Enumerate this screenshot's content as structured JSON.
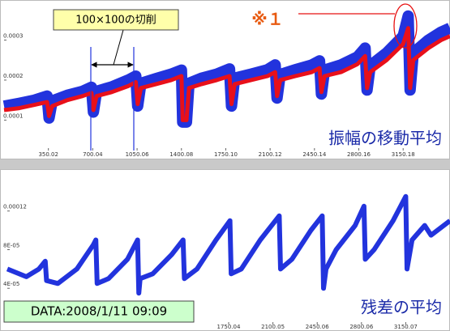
{
  "chart_data": [
    {
      "type": "line",
      "title": "振幅の移動平均",
      "annotations": [
        "100×100の切削",
        "※１"
      ],
      "x": [
        0,
        120,
        240,
        340,
        355,
        380,
        500,
        620,
        690,
        705,
        730,
        850,
        980,
        1040,
        1055,
        1080,
        1200,
        1320,
        1400,
        1410,
        1440,
        1460,
        1560,
        1680,
        1780,
        1795,
        1820,
        1950,
        2080,
        2140,
        2155,
        2180,
        2300,
        2430,
        2490,
        2505,
        2530,
        2660,
        2790,
        2850,
        2865,
        2890,
        3020,
        3150,
        3190,
        3205,
        3230,
        3350,
        3450,
        3520
      ],
      "series": [
        {
          "color": "#2233dd",
          "values": [
            0.000135,
            0.000142,
            0.00015,
            0.00016,
            0.000105,
            0.000148,
            0.000162,
            0.000172,
            0.000182,
            0.00012,
            0.000172,
            0.000183,
            0.0002,
            0.00021,
            0.000135,
            0.000192,
            0.000204,
            0.000215,
            0.000225,
            9.5e-05,
            9.5e-05,
            0.000192,
            0.000205,
            0.000215,
            0.000228,
            0.000135,
            0.000205,
            0.000215,
            0.000226,
            0.000238,
            0.000155,
            0.000214,
            0.000226,
            0.000238,
            0.000248,
            0.000165,
            0.000225,
            0.000238,
            0.000258,
            0.00028,
            0.000175,
            0.000236,
            0.000268,
            0.00031,
            0.00036,
            0.000175,
            0.000268,
            0.0003,
            0.00032,
            0.00033
          ]
        },
        {
          "color": "#e8101a",
          "values": [
            0.000125,
            0.00013,
            0.000138,
            0.000145,
            0.00011,
            0.000135,
            0.00015,
            0.00016,
            0.000168,
            0.000125,
            0.00016,
            0.00017,
            0.000185,
            0.000195,
            0.00014,
            0.00018,
            0.00019,
            0.0002,
            0.00021,
            0.0001,
            0.0001,
            0.00018,
            0.00019,
            0.0002,
            0.00021,
            0.00014,
            0.00019,
            0.0002,
            0.00021,
            0.00022,
            0.00016,
            0.0002,
            0.00021,
            0.00022,
            0.00023,
            0.00017,
            0.00021,
            0.00022,
            0.00024,
            0.00026,
            0.00018,
            0.00022,
            0.00025,
            0.00029,
            0.00033,
            0.00018,
            0.00025,
            0.00028,
            0.0003,
            0.00031
          ]
        }
      ],
      "xlim": [
        0,
        3520
      ],
      "xticks": [
        350.02,
        700.04,
        1050.06,
        1400.08,
        {
          "value": 1750.1,
          "label": "1750.10"
        },
        2100.12,
        2450.14,
        2800.16,
        3150.18
      ],
      "ylim": [
        3e-05,
        0.00039
      ],
      "yticks": [
        0.0001,
        0.0002,
        0.0003
      ]
    },
    {
      "type": "line",
      "title": "残差の平均",
      "annotations": [
        "DATA:2008/1/11 09:09"
      ],
      "x": [
        0,
        150,
        250,
        300,
        310,
        400,
        550,
        680,
        700,
        710,
        800,
        950,
        1030,
        1040,
        1050,
        1150,
        1300,
        1390,
        1400,
        1500,
        1650,
        1760,
        1770,
        1850,
        2000,
        2150,
        2160,
        2250,
        2400,
        2490,
        2500,
        2520,
        2600,
        2750,
        2820,
        2830,
        2900,
        3050,
        3150,
        3160,
        3200,
        3300,
        3350,
        3500
      ],
      "series": [
        {
          "color": "#2233dd",
          "values": [
            6e-05,
            5.2e-05,
            6e-05,
            6.8e-05,
            4.8e-05,
            4.5e-05,
            6e-05,
            8.5e-05,
            9e-05,
            4.5e-05,
            5e-05,
            7e-05,
            9e-05,
            3.5e-05,
            5e-05,
            5.5e-05,
            7.5e-05,
            9e-05,
            5e-05,
            6e-05,
            9e-05,
            0.00011,
            5.5e-05,
            6e-05,
            9e-05,
            0.000115,
            6e-05,
            7e-05,
            0.0001,
            0.000115,
            4e-05,
            6e-05,
            8e-05,
            0.000105,
            0.000125,
            7e-05,
            8e-05,
            0.00011,
            0.000135,
            6e-05,
            9e-05,
            0.000105,
            9.5e-05,
            0.00011
          ]
        }
      ],
      "xlim": [
        0,
        3500
      ],
      "xticks": [
        1750.04,
        2100.05,
        2450.06,
        2800.06,
        3150.07
      ],
      "ylim": [
        5e-06,
        0.00016
      ],
      "yticks": [
        {
          "value": 4e-05,
          "label": "4E-05"
        },
        {
          "value": 8e-05,
          "label": "8E-05"
        },
        0.00012
      ]
    }
  ]
}
